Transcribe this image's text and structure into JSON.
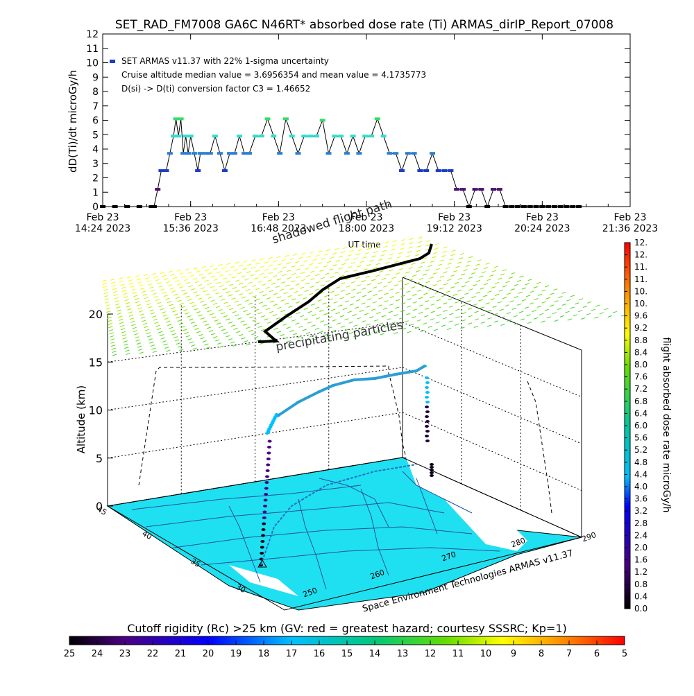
{
  "title": "SET_RAD_FM7008  GA6C N46RT* absorbed dose rate (Ti) ARMAS_dirIP_Report_07008",
  "chart_data": [
    {
      "type": "line",
      "ylabel": "dD(Ti)/dt microGy/h",
      "xlabel": "UT time",
      "ylim": [
        0,
        12
      ],
      "yticks": [
        "0",
        "1",
        "2",
        "3",
        "4",
        "5",
        "6",
        "7",
        "8",
        "9",
        "10",
        "11",
        "12"
      ],
      "xticks": [
        {
          "line1": "Feb 23",
          "line2": "14:24 2023"
        },
        {
          "line1": "Feb 23",
          "line2": "15:36 2023"
        },
        {
          "line1": "Feb 23",
          "line2": "16:48 2023"
        },
        {
          "line1": "Feb 23",
          "line2": "18:00 2023"
        },
        {
          "line1": "Feb 23",
          "line2": "19:12 2023"
        },
        {
          "line1": "Feb 23",
          "line2": "20:24 2023"
        },
        {
          "line1": "Feb 23",
          "line2": "21:36 2023"
        }
      ],
      "legend": [
        "SET ARMAS v11.37 with 22% 1-sigma uncertainty",
        "Cruise altitude median value = 3.6956354 and mean value = 4.1735773",
        "D(si) -> D(ti) conversion factor C3 = 1.46652"
      ],
      "series": [
        {
          "x_minutes_since_1424": [
            0,
            10,
            20,
            30,
            40,
            42,
            45,
            48,
            52,
            55,
            58,
            60,
            62,
            64,
            66,
            68,
            70,
            72,
            75,
            78,
            80,
            84,
            88,
            92,
            96,
            100,
            104,
            108,
            112,
            116,
            120,
            125,
            130,
            135,
            140,
            145,
            150,
            155,
            160,
            165,
            170,
            175,
            180,
            185,
            190,
            195,
            200,
            205,
            210,
            215,
            220,
            225,
            230,
            235,
            240,
            245,
            250,
            255,
            260,
            265,
            270,
            275,
            280,
            285,
            290,
            295,
            300,
            305,
            310,
            315,
            320,
            325,
            330,
            335,
            340,
            345,
            350,
            355,
            360,
            365,
            370,
            375,
            380,
            385,
            390
          ],
          "values": [
            0,
            0,
            0,
            0,
            0,
            0,
            1.2,
            2.5,
            2.5,
            3.7,
            4.9,
            6.1,
            4.9,
            6.1,
            3.7,
            4.9,
            3.7,
            4.9,
            3.7,
            2.5,
            3.7,
            3.7,
            3.7,
            4.9,
            3.7,
            2.5,
            3.7,
            3.7,
            4.9,
            3.7,
            3.7,
            4.9,
            4.9,
            6.1,
            4.9,
            3.7,
            6.1,
            4.9,
            3.7,
            4.9,
            4.9,
            4.9,
            6.0,
            3.7,
            4.9,
            4.9,
            3.7,
            4.9,
            3.7,
            4.9,
            4.9,
            6.1,
            4.9,
            3.7,
            3.7,
            2.5,
            3.7,
            3.7,
            2.5,
            2.5,
            3.7,
            2.5,
            2.5,
            2.5,
            1.2,
            1.2,
            0,
            1.2,
            1.2,
            0,
            1.2,
            1.2,
            0,
            0,
            0,
            0,
            0,
            0,
            0,
            0,
            0,
            0,
            0,
            0,
            0
          ]
        }
      ]
    },
    {
      "type": "scatter",
      "title": "shadowed flight path",
      "annotation": "precipitating particles",
      "zlabel": "Altitude (km)",
      "zticks": [
        "0",
        "5",
        "10",
        "15",
        "20"
      ],
      "lat_ticks": [
        "45",
        "40",
        "35",
        "30"
      ],
      "lon_ticks": [
        "250",
        "260",
        "270",
        "280",
        "290"
      ],
      "credit": "Space Environment Technologies ARMAS v11.37"
    }
  ],
  "colorbar_right": {
    "label": "flight absorbed dose rate microGy/h",
    "ticks": [
      "0.0",
      "0.4",
      "0.8",
      "1.2",
      "1.6",
      "2.0",
      "2.4",
      "2.8",
      "3.2",
      "3.6",
      "4.0",
      "4.4",
      "4.8",
      "5.2",
      "5.6",
      "6.0",
      "6.4",
      "6.8",
      "7.2",
      "7.6",
      "8.0",
      "8.4",
      "8.8",
      "9.2",
      "9.6",
      "10.",
      "10.",
      "11.",
      "11.",
      "12.",
      "12."
    ]
  },
  "colorbar_bottom": {
    "label": "Cutoff rigidity (Rc) >25 km (GV: red = greatest hazard; courtesy SSSRC; Kp=1)",
    "ticks": [
      "25",
      "24",
      "23",
      "22",
      "21",
      "20",
      "19",
      "18",
      "17",
      "16",
      "15",
      "14",
      "13",
      "12",
      "11",
      "10",
      "9",
      "8",
      "7",
      "6",
      "5"
    ]
  }
}
